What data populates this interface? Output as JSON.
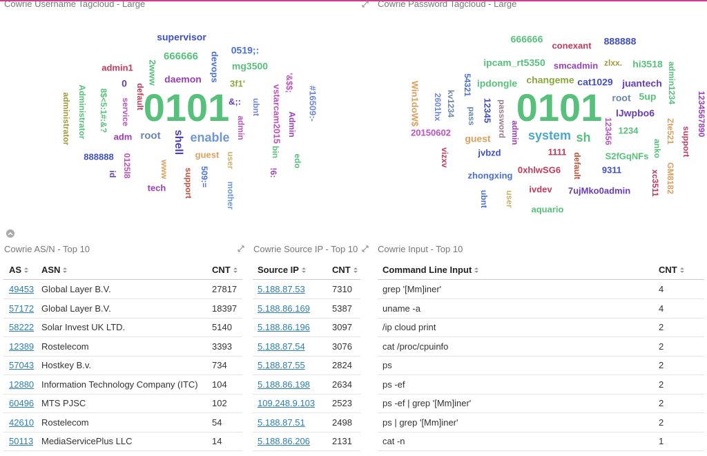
{
  "panels": {
    "username_cloud": {
      "title": "Cowrie Username Tagcloud - Large",
      "words": [
        {
          "text": "supervisor",
          "color": "#3f4fc4"
        },
        {
          "text": "0519;:",
          "color": "#4a6fd8"
        },
        {
          "text": "666666",
          "color": "#57c17b"
        },
        {
          "text": "devops",
          "color": "#4a6fd8"
        },
        {
          "text": "mg3500",
          "color": "#57c17b"
        },
        {
          "text": "admin1",
          "color": "#c23a5a"
        },
        {
          "text": "2www",
          "color": "#57c17b"
        },
        {
          "text": "daemon",
          "color": "#9a3fb8"
        },
        {
          "text": "0",
          "color": "#663db8"
        },
        {
          "text": "3f1'",
          "color": "#8aa83a"
        },
        {
          "text": "vstarcam2015",
          "color": "#bc52bc"
        },
        {
          "text": "'&$$;",
          "color": "#bc52bc"
        },
        {
          "text": "#16509:-",
          "color": "#6f87d8"
        },
        {
          "text": "administrator",
          "color": "#a09a3a"
        },
        {
          "text": "Administrator",
          "color": "#57c17b"
        },
        {
          "text": "8$<5:1#:&?",
          "color": "#57c17b"
        },
        {
          "text": "service",
          "color": "#bc52bc"
        },
        {
          "text": "default",
          "color": "#c23a5a"
        },
        {
          "text": "0101",
          "color": "#57c17b"
        },
        {
          "text": "&;:",
          "color": "#663db8"
        },
        {
          "text": "ubnt",
          "color": "#6f87d8"
        },
        {
          "text": "Admin",
          "color": "#9a3fb8"
        },
        {
          "text": "admin",
          "color": "#bc52bc"
        },
        {
          "text": "enable",
          "color": "#6f97d8"
        },
        {
          "text": "root",
          "color": "#6b86b0"
        },
        {
          "text": "shell",
          "color": "#4a3fb8"
        },
        {
          "text": "adm",
          "color": "#9a3fb8"
        },
        {
          "text": "888888",
          "color": "#3f4fc4"
        },
        {
          "text": "guest",
          "color": "#daa05d"
        },
        {
          "text": "bin",
          "color": "#57c17b"
        },
        {
          "text": "edo",
          "color": "#57c17b"
        },
        {
          "text": "id",
          "color": "#663db8"
        },
        {
          "text": "0125l8",
          "color": "#bc52bc"
        },
        {
          "text": "www",
          "color": "#daa05d"
        },
        {
          "text": "user",
          "color": "#c9b26a"
        },
        {
          "text": "tech",
          "color": "#9a3fb8"
        },
        {
          "text": "support",
          "color": "#c2503a"
        },
        {
          "text": "509:=",
          "color": "#4a6fd8"
        },
        {
          "text": "mother",
          "color": "#6f97d8"
        },
        {
          "text": "!6:",
          "color": "#9a3fb8"
        }
      ]
    },
    "password_cloud": {
      "title": "Cowrie Password Tagcloud - Large",
      "words": [
        {
          "text": "666666",
          "color": "#57c17b"
        },
        {
          "text": "conexant",
          "color": "#c23a5a"
        },
        {
          "text": "888888",
          "color": "#3f4fc4"
        },
        {
          "text": "ipcam_rt5350",
          "color": "#57c17b"
        },
        {
          "text": "smcadmin",
          "color": "#9a3fb8"
        },
        {
          "text": "zlxx.",
          "color": "#a09a3a"
        },
        {
          "text": "hi3518",
          "color": "#57c17b"
        },
        {
          "text": "admin1234",
          "color": "#57c17b"
        },
        {
          "text": "54321",
          "color": "#4a6fd8"
        },
        {
          "text": "ipdongle",
          "color": "#57c17b"
        },
        {
          "text": "changeme",
          "color": "#8aa83a"
        },
        {
          "text": "cat1029",
          "color": "#3f4fc4"
        },
        {
          "text": "juantech",
          "color": "#663db8"
        },
        {
          "text": "Win1doW$",
          "color": "#daa05d"
        },
        {
          "text": "2601hx",
          "color": "#6f87d8"
        },
        {
          "text": "kv1234",
          "color": "#6b86b0"
        },
        {
          "text": "0101",
          "color": "#57c17b"
        },
        {
          "text": "root",
          "color": "#6b86b0"
        },
        {
          "text": "5up",
          "color": "#57c17b"
        },
        {
          "text": "1234567890",
          "color": "#9a3fb8"
        },
        {
          "text": "pass",
          "color": "#6b86b0"
        },
        {
          "text": "12345",
          "color": "#3f4fc4"
        },
        {
          "text": "password",
          "color": "#9a7a8a"
        },
        {
          "text": "lJwpbo6",
          "color": "#663db8"
        },
        {
          "text": "system",
          "color": "#4aa8c8"
        },
        {
          "text": "sh",
          "color": "#57c17b"
        },
        {
          "text": "123456",
          "color": "#bc52bc"
        },
        {
          "text": "1234",
          "color": "#57c17b"
        },
        {
          "text": "Zte521",
          "color": "#daa05d"
        },
        {
          "text": "support",
          "color": "#c23a5a"
        },
        {
          "text": "20150602",
          "color": "#bc52bc"
        },
        {
          "text": "admin",
          "color": "#9a3fb8"
        },
        {
          "text": "guest",
          "color": "#daa05d"
        },
        {
          "text": "1111",
          "color": "#c23a5a"
        },
        {
          "text": "jvbzd",
          "color": "#3f4fc4"
        },
        {
          "text": "S2fGqNFs",
          "color": "#57c17b"
        },
        {
          "text": "anko",
          "color": "#57c17b"
        },
        {
          "text": "vizxv",
          "color": "#c23a5a"
        },
        {
          "text": "default",
          "color": "#c2503a"
        },
        {
          "text": "0xhlwSG6",
          "color": "#c23a5a"
        },
        {
          "text": "9311",
          "color": "#3f4fc4"
        },
        {
          "text": "zhongxing",
          "color": "#4a6fd8"
        },
        {
          "text": "GM8182",
          "color": "#daa05d"
        },
        {
          "text": "xc3511",
          "color": "#c23a5a"
        },
        {
          "text": "ivdev",
          "color": "#c23a5a"
        },
        {
          "text": "7ujMko0admin",
          "color": "#663db8"
        },
        {
          "text": "ubnt",
          "color": "#4a6fd8"
        },
        {
          "text": "user",
          "color": "#c9b26a"
        },
        {
          "text": "aquario",
          "color": "#57c17b"
        }
      ]
    },
    "asn_table": {
      "title": "Cowrie AS/N - Top 10",
      "columns": [
        "AS",
        "ASN",
        "CNT"
      ],
      "rows": [
        [
          "49453",
          "Global Layer B.V.",
          27817
        ],
        [
          "57172",
          "Global Layer B.V.",
          18397
        ],
        [
          "58222",
          "Solar Invest UK LTD.",
          5140
        ],
        [
          "12389",
          "Rostelecom",
          3393
        ],
        [
          "57043",
          "Hostkey B.v.",
          734
        ],
        [
          "12880",
          "Information Technology Company (ITC)",
          104
        ],
        [
          "60496",
          "MTS PJSC",
          102
        ],
        [
          "42610",
          "Rostelecom",
          54
        ],
        [
          "50113",
          "MediaServicePlus LLC",
          14
        ]
      ]
    },
    "source_ip_table": {
      "title": "Cowrie Source IP - Top 10",
      "columns": [
        "Source IP",
        "CNT"
      ],
      "rows": [
        [
          "5.188.87.53",
          7310
        ],
        [
          "5.188.86.169",
          5387
        ],
        [
          "5.188.86.196",
          3097
        ],
        [
          "5.188.87.54",
          3076
        ],
        [
          "5.188.87.55",
          2824
        ],
        [
          "5.188.86.198",
          2634
        ],
        [
          "109.248.9.103",
          2523
        ],
        [
          "5.188.87.51",
          2498
        ],
        [
          "5.188.86.206",
          2131
        ]
      ]
    },
    "input_table": {
      "title": "Cowrie Input - Top 10",
      "columns": [
        "Command Line Input",
        "CNT"
      ],
      "rows": [
        [
          "grep '[Mm]iner'",
          4
        ],
        [
          "uname -a",
          4
        ],
        [
          "/ip cloud print",
          2
        ],
        [
          "cat /proc/cpuinfo",
          2
        ],
        [
          "ps",
          2
        ],
        [
          "ps -ef",
          2
        ],
        [
          "ps -ef | grep '[Mm]iner'",
          2
        ],
        [
          "ps | grep '[Mm]iner'",
          2
        ],
        [
          "cat -n",
          1
        ]
      ]
    }
  }
}
